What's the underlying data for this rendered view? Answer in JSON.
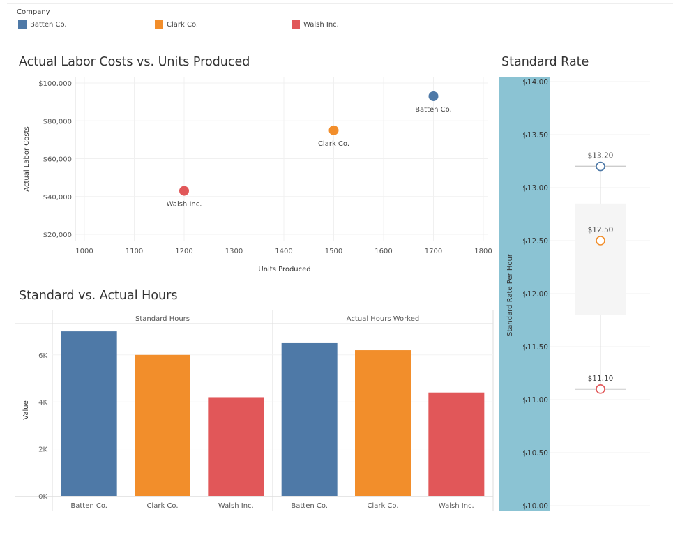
{
  "legend": {
    "title": "Company",
    "items": [
      {
        "label": "Batten Co.",
        "color": "#4e79a7"
      },
      {
        "label": "Clark Co.",
        "color": "#f28e2b"
      },
      {
        "label": "Walsh Inc.",
        "color": "#e15759"
      }
    ]
  },
  "chart_data": [
    {
      "type": "scatter",
      "title": "Actual Labor Costs vs. Units Produced",
      "xlabel": "Units Produced",
      "ylabel": "Actual Labor Costs",
      "xlim": [
        1000,
        1800
      ],
      "ylim": [
        20000,
        100000
      ],
      "x_ticks": [
        "1000",
        "1100",
        "1200",
        "1300",
        "1400",
        "1500",
        "1600",
        "1700",
        "1800"
      ],
      "y_ticks": [
        "$20,000",
        "$40,000",
        "$60,000",
        "$80,000",
        "$100,000"
      ],
      "grid": true,
      "points": [
        {
          "label": "Batten Co.",
          "x": 1700,
          "y": 93000,
          "color": "#4e79a7"
        },
        {
          "label": "Clark Co.",
          "x": 1500,
          "y": 75000,
          "color": "#f28e2b"
        },
        {
          "label": "Walsh Inc.",
          "x": 1200,
          "y": 43000,
          "color": "#e15759"
        }
      ]
    },
    {
      "type": "bar",
      "title": "Standard vs. Actual Hours",
      "ylabel": "Value",
      "ylim": [
        0,
        7000
      ],
      "y_ticks": [
        "0K",
        "2K",
        "4K",
        "6K"
      ],
      "categories": [
        "Batten Co.",
        "Clark Co.",
        "Walsh Inc."
      ],
      "colors": [
        "#4e79a7",
        "#f28e2b",
        "#e15759"
      ],
      "panels": [
        {
          "name": "Standard Hours",
          "values": [
            7000,
            6000,
            4200
          ]
        },
        {
          "name": "Actual Hours Worked",
          "values": [
            6500,
            6200,
            4400
          ]
        }
      ]
    },
    {
      "type": "box",
      "title": "Standard Rate",
      "ylabel": "Standard Rate Per Hour",
      "ylim": [
        10,
        14
      ],
      "y_ticks": [
        "$10.00",
        "$10.50",
        "$11.00",
        "$11.50",
        "$12.00",
        "$12.50",
        "$13.00",
        "$13.50",
        "$14.00"
      ],
      "axis_band_color": "#8bc3d3",
      "box": {
        "lower_whisker": 11.1,
        "q1": 11.8,
        "q3": 12.85,
        "upper_whisker": 13.2
      },
      "points": [
        {
          "company": "Batten Co.",
          "value": 13.2,
          "label": "$13.20",
          "color": "#4e79a7"
        },
        {
          "company": "Clark Co.",
          "value": 12.5,
          "label": "$12.50",
          "color": "#f28e2b"
        },
        {
          "company": "Walsh Inc.",
          "value": 11.1,
          "label": "$11.10",
          "color": "#e15759"
        }
      ]
    }
  ]
}
